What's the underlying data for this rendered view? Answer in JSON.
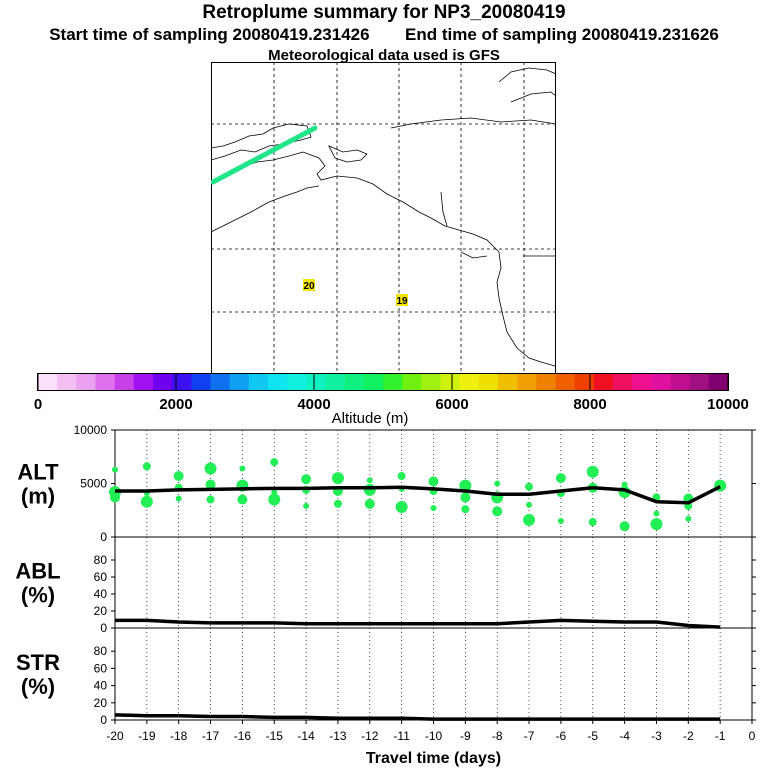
{
  "header": {
    "title": "Retroplume summary for NP3_20080419",
    "start_label": "Start time of sampling",
    "start_value": "20080419.231426",
    "end_label": "End time of sampling",
    "end_value": "20080419.231626",
    "met_line": "Meteorological data used is GFS"
  },
  "map": {
    "plume_color": "#22e58a",
    "day_markers": [
      {
        "label": "20",
        "color": "#f2e600"
      },
      {
        "label": "19",
        "color": "#f2e600"
      }
    ]
  },
  "colorbar": {
    "label": "Altitude (m)",
    "tick_labels": [
      "0",
      "2000",
      "4000",
      "6000",
      "8000",
      "10000"
    ],
    "colors": [
      "#fce0fc",
      "#f4c0f4",
      "#eca0f0",
      "#e070ec",
      "#c840e8",
      "#a010f0",
      "#7000f0",
      "#3c10f0",
      "#1040f0",
      "#1070f0",
      "#10a0f0",
      "#10c8f0",
      "#10e4f0",
      "#10f0e0",
      "#10f0c0",
      "#10f0a0",
      "#10f080",
      "#10f060",
      "#30f030",
      "#70f010",
      "#a0f010",
      "#d0f010",
      "#f0f010",
      "#f0e000",
      "#f0c000",
      "#f0a000",
      "#f08000",
      "#f06000",
      "#f04000",
      "#f01020",
      "#f01060",
      "#f01090",
      "#e010a0",
      "#c01090",
      "#a01080",
      "#800070"
    ]
  },
  "chart_data": [
    {
      "type": "line",
      "name": "ALT",
      "ylabel": "ALT\n(m)",
      "ylabel_lines": [
        "ALT",
        "(m)"
      ],
      "ylim": [
        0,
        10000
      ],
      "yticks": [
        0,
        5000,
        10000
      ],
      "xlim": [
        -20,
        0
      ],
      "x": [
        -20,
        -19,
        -18,
        -17,
        -16,
        -15,
        -14,
        -13,
        -12,
        -11,
        -10,
        -9,
        -8,
        -7,
        -6,
        -5,
        -4,
        -3,
        -2,
        -1
      ],
      "mean": [
        4300,
        4300,
        4400,
        4450,
        4500,
        4550,
        4550,
        4600,
        4600,
        4650,
        4500,
        4300,
        4000,
        4000,
        4300,
        4600,
        4400,
        3300,
        3200,
        4700
      ],
      "scatter_color": "#22ee55",
      "scatter": [
        [
          -20,
          6300
        ],
        [
          -20,
          4200
        ],
        [
          -20,
          3700
        ],
        [
          -19,
          6600
        ],
        [
          -19,
          4100
        ],
        [
          -19,
          3300
        ],
        [
          -18,
          5700
        ],
        [
          -18,
          4600
        ],
        [
          -18,
          3600
        ],
        [
          -17,
          6400
        ],
        [
          -17,
          4900
        ],
        [
          -17,
          3500
        ],
        [
          -16,
          6400
        ],
        [
          -16,
          4800
        ],
        [
          -16,
          3500
        ],
        [
          -15,
          7000
        ],
        [
          -15,
          4200
        ],
        [
          -15,
          3500
        ],
        [
          -14,
          5400
        ],
        [
          -14,
          4400
        ],
        [
          -14,
          2900
        ],
        [
          -13,
          5500
        ],
        [
          -13,
          4300
        ],
        [
          -13,
          3100
        ],
        [
          -12,
          5300
        ],
        [
          -12,
          4400
        ],
        [
          -12,
          3100
        ],
        [
          -11,
          5700
        ],
        [
          -11,
          4500
        ],
        [
          -11,
          2800
        ],
        [
          -10,
          5200
        ],
        [
          -10,
          4300
        ],
        [
          -10,
          2700
        ],
        [
          -9,
          4800
        ],
        [
          -9,
          3700
        ],
        [
          -9,
          2600
        ],
        [
          -8,
          5000
        ],
        [
          -8,
          3700
        ],
        [
          -8,
          2400
        ],
        [
          -7,
          4700
        ],
        [
          -7,
          3000
        ],
        [
          -7,
          1600
        ],
        [
          -6,
          5500
        ],
        [
          -6,
          4100
        ],
        [
          -6,
          1500
        ],
        [
          -5,
          6100
        ],
        [
          -5,
          4600
        ],
        [
          -5,
          1400
        ],
        [
          -4,
          4900
        ],
        [
          -4,
          4200
        ],
        [
          -4,
          1000
        ],
        [
          -3,
          3700
        ],
        [
          -3,
          2200
        ],
        [
          -3,
          1200
        ],
        [
          -2,
          3600
        ],
        [
          -2,
          2900
        ],
        [
          -2,
          1700
        ],
        [
          -1,
          4800
        ]
      ]
    },
    {
      "type": "line",
      "name": "ABL",
      "ylabel": "ABL\n(%)",
      "ylabel_lines": [
        "ABL",
        "(%)"
      ],
      "ylim": [
        0,
        100
      ],
      "yticks": [
        0,
        20,
        40,
        60,
        80
      ],
      "xlim": [
        -20,
        0
      ],
      "x": [
        -20,
        -19,
        -18,
        -17,
        -16,
        -15,
        -14,
        -13,
        -12,
        -11,
        -10,
        -9,
        -8,
        -7,
        -6,
        -5,
        -4,
        -3,
        -2,
        -1
      ],
      "values": [
        9,
        9,
        7,
        6,
        6,
        6,
        5,
        5,
        5,
        5,
        5,
        5,
        5,
        7,
        9,
        8,
        7,
        7,
        3,
        1
      ]
    },
    {
      "type": "line",
      "name": "STR",
      "ylabel": "STR\n(%)",
      "ylabel_lines": [
        "STR",
        "(%)"
      ],
      "ylim": [
        0,
        100
      ],
      "yticks": [
        0,
        20,
        40,
        60,
        80
      ],
      "xlim": [
        -20,
        0
      ],
      "x": [
        -20,
        -19,
        -18,
        -17,
        -16,
        -15,
        -14,
        -13,
        -12,
        -11,
        -10,
        -9,
        -8,
        -7,
        -6,
        -5,
        -4,
        -3,
        -2,
        -1
      ],
      "values": [
        6,
        5,
        5,
        4,
        4,
        3,
        3,
        2,
        2,
        2,
        1,
        1,
        1,
        1,
        1,
        1,
        1,
        1,
        1,
        1
      ],
      "xlabel": "Travel time (days)",
      "xtick_labels": [
        "-20",
        "-19",
        "-18",
        "-17",
        "-16",
        "-15",
        "-14",
        "-13",
        "-12",
        "-11",
        "-10",
        "-9",
        "-8",
        "-7",
        "-6",
        "-5",
        "-4",
        "-3",
        "-2",
        "-1",
        "0"
      ]
    }
  ]
}
